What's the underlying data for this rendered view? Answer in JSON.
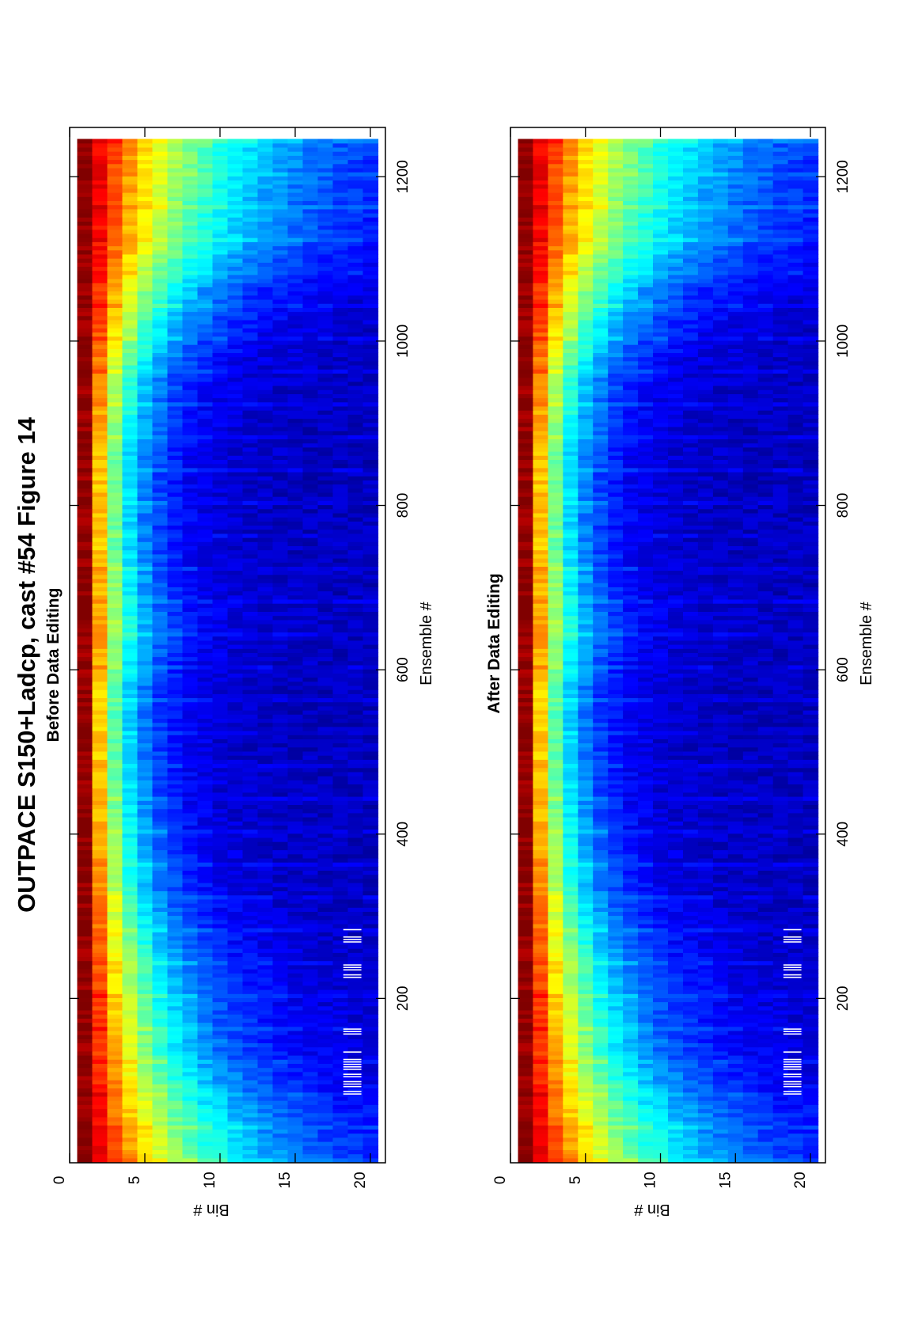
{
  "page": {
    "title": "OUTPACE S150+Ladcp, cast #54  Figure 14"
  },
  "chart_data": [
    {
      "type": "heatmap",
      "title": "Before Data Editing",
      "xlabel": "Ensemble #",
      "ylabel": "Bin #",
      "xlim": [
        0,
        1260
      ],
      "ylim": [
        0,
        21
      ],
      "y_reversed": true,
      "xticks": [
        200,
        400,
        600,
        800,
        1000,
        1200
      ],
      "xtick_labels": [
        "200",
        "400",
        "600",
        "800",
        "1000",
        "1200"
      ],
      "yticks": [
        0,
        5,
        10,
        15,
        20
      ],
      "ytick_labels": [
        "0",
        "5",
        "10",
        "15",
        "20"
      ],
      "colormap": "jet",
      "bins": 20,
      "ensembles": [
        1,
        1245
      ],
      "echo_profile": {
        "ensemble": [
          0,
          60,
          130,
          230,
          330,
          440,
          560,
          650,
          760,
          860,
          960,
          1060,
          1120,
          1245
        ],
        "decay_length_bins": [
          9.0,
          7.5,
          5.5,
          4.5,
          3.2,
          2.6,
          2.4,
          3.0,
          2.5,
          2.6,
          3.3,
          5.5,
          8.0,
          9.5
        ]
      },
      "missing_data": {
        "bins": [
          18.2,
          19.4
        ],
        "ensemble_ranges": [
          [
            80,
            135
          ],
          [
            150,
            170
          ],
          [
            225,
            240
          ],
          [
            268,
            285
          ]
        ]
      }
    },
    {
      "type": "heatmap",
      "title": "After Data Editing",
      "xlabel": "Ensemble #",
      "ylabel": "Bin #",
      "xlim": [
        0,
        1260
      ],
      "ylim": [
        0,
        21
      ],
      "y_reversed": true,
      "xticks": [
        200,
        400,
        600,
        800,
        1000,
        1200
      ],
      "xtick_labels": [
        "200",
        "400",
        "600",
        "800",
        "1000",
        "1200"
      ],
      "yticks": [
        0,
        5,
        10,
        15,
        20
      ],
      "ytick_labels": [
        "0",
        "5",
        "10",
        "15",
        "20"
      ],
      "colormap": "jet",
      "bins": 20,
      "ensembles": [
        1,
        1245
      ],
      "echo_profile": {
        "ensemble": [
          0,
          60,
          130,
          230,
          330,
          440,
          560,
          650,
          760,
          860,
          960,
          1060,
          1120,
          1245
        ],
        "decay_length_bins": [
          9.0,
          7.5,
          5.5,
          4.5,
          3.2,
          2.6,
          2.4,
          3.0,
          2.5,
          2.6,
          3.3,
          5.5,
          8.0,
          9.5
        ]
      },
      "missing_data": {
        "bins": [
          18.2,
          19.4
        ],
        "ensemble_ranges": [
          [
            80,
            135
          ],
          [
            150,
            170
          ],
          [
            225,
            240
          ],
          [
            268,
            285
          ]
        ]
      }
    }
  ]
}
